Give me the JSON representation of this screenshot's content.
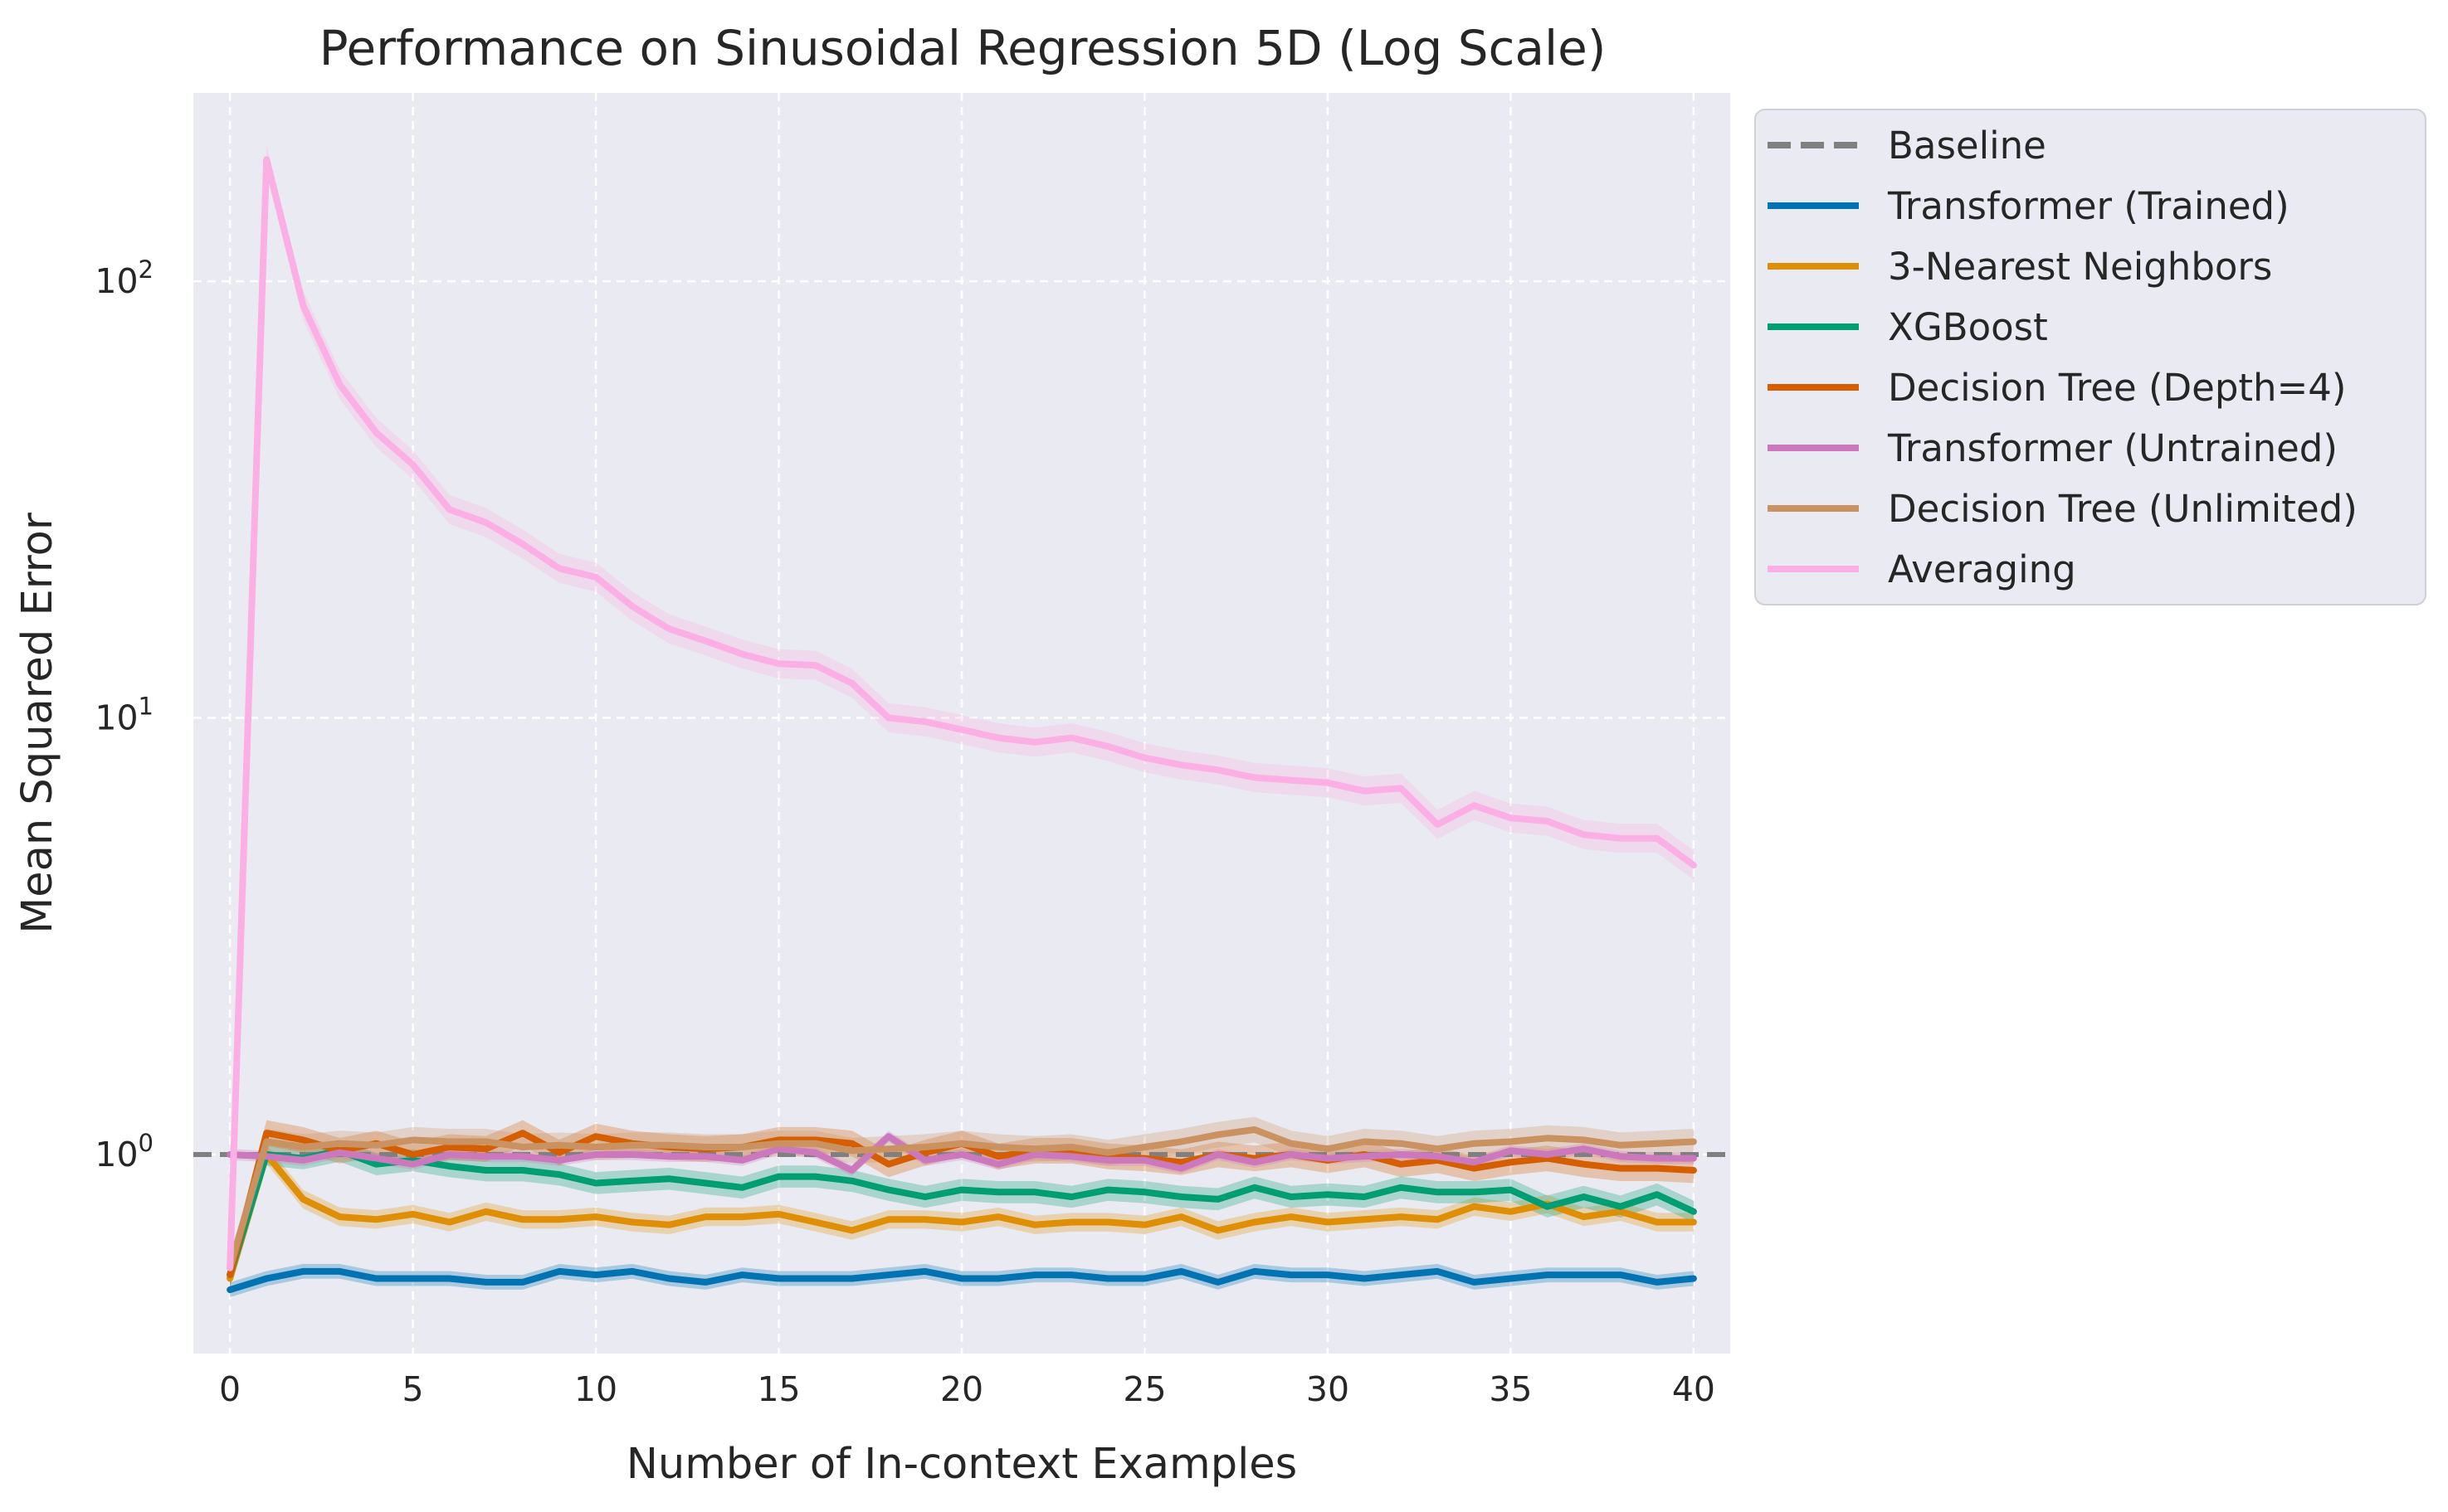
{
  "chart_data": {
    "type": "line",
    "title": "Performance on Sinusoidal Regression 5D (Log Scale)",
    "xlabel": "Number of In-context Examples",
    "ylabel": "Mean Squared Error",
    "xlim": [
      -1,
      41
    ],
    "ylim": [
      0.35,
      270
    ],
    "yscale": "log",
    "grid": true,
    "legend_position": "outside-right",
    "x_ticks": [
      0,
      5,
      10,
      15,
      20,
      25,
      30,
      35,
      40
    ],
    "x_tick_labels": [
      "0",
      "5",
      "10",
      "15",
      "20",
      "25",
      "30",
      "35",
      "40"
    ],
    "y_ticks": [
      1,
      10,
      100
    ],
    "y_tick_labels": [
      {
        "base": "10",
        "exp": "0"
      },
      {
        "base": "10",
        "exp": "1"
      },
      {
        "base": "10",
        "exp": "2"
      }
    ],
    "baseline": {
      "name": "Baseline",
      "value": 1.0,
      "color": "#808080",
      "style": "dashed"
    },
    "x": [
      0,
      1,
      2,
      3,
      4,
      5,
      6,
      7,
      8,
      9,
      10,
      11,
      12,
      13,
      14,
      15,
      16,
      17,
      18,
      19,
      20,
      21,
      22,
      23,
      24,
      25,
      26,
      27,
      28,
      29,
      30,
      31,
      32,
      33,
      34,
      35,
      36,
      37,
      38,
      39,
      40
    ],
    "series": [
      {
        "name": "Transformer (Trained)",
        "color": "#0173b2",
        "values": [
          0.49,
          0.52,
          0.54,
          0.54,
          0.52,
          0.52,
          0.52,
          0.51,
          0.51,
          0.54,
          0.53,
          0.54,
          0.52,
          0.51,
          0.53,
          0.52,
          0.52,
          0.52,
          0.53,
          0.54,
          0.52,
          0.52,
          0.53,
          0.53,
          0.52,
          0.52,
          0.54,
          0.51,
          0.54,
          0.53,
          0.53,
          0.52,
          0.53,
          0.54,
          0.51,
          0.52,
          0.53,
          0.53,
          0.53,
          0.51,
          0.52
        ],
        "band": 0.04
      },
      {
        "name": "3-Nearest Neighbors",
        "color": "#de8f05",
        "values": [
          0.52,
          1.0,
          0.79,
          0.72,
          0.71,
          0.73,
          0.7,
          0.74,
          0.71,
          0.71,
          0.72,
          0.7,
          0.69,
          0.72,
          0.72,
          0.73,
          0.7,
          0.67,
          0.71,
          0.71,
          0.7,
          0.72,
          0.69,
          0.7,
          0.7,
          0.69,
          0.72,
          0.67,
          0.7,
          0.72,
          0.7,
          0.71,
          0.72,
          0.71,
          0.76,
          0.74,
          0.77,
          0.72,
          0.74,
          0.7,
          0.7
        ],
        "band": 0.05
      },
      {
        "name": "XGBoost",
        "color": "#029e73",
        "values": [
          0.53,
          1.0,
          0.98,
          1.02,
          0.95,
          0.97,
          0.94,
          0.92,
          0.92,
          0.9,
          0.86,
          0.87,
          0.88,
          0.86,
          0.84,
          0.89,
          0.89,
          0.87,
          0.83,
          0.8,
          0.83,
          0.82,
          0.82,
          0.8,
          0.83,
          0.82,
          0.8,
          0.79,
          0.84,
          0.8,
          0.81,
          0.8,
          0.84,
          0.82,
          0.82,
          0.83,
          0.76,
          0.8,
          0.76,
          0.81,
          0.74
        ],
        "band": 0.06
      },
      {
        "name": "Decision Tree (Depth=4)",
        "color": "#d55e00",
        "values": [
          0.53,
          1.12,
          1.08,
          1.02,
          1.06,
          1.0,
          1.04,
          1.03,
          1.12,
          1.01,
          1.1,
          1.06,
          1.04,
          1.03,
          1.04,
          1.08,
          1.08,
          1.06,
          0.95,
          1.01,
          1.06,
          0.99,
          1.02,
          1.02,
          0.99,
          0.98,
          0.96,
          1.0,
          0.98,
          1.0,
          0.97,
          1.0,
          0.95,
          0.97,
          0.93,
          0.96,
          0.98,
          0.95,
          0.93,
          0.93,
          0.92
        ],
        "band": 0.07
      },
      {
        "name": "Transformer (Untrained)",
        "color": "#cc78bc",
        "values": [
          1.0,
          0.99,
          0.97,
          1.01,
          0.98,
          0.95,
          1.0,
          0.99,
          0.99,
          0.97,
          1.0,
          1.0,
          0.99,
          0.99,
          0.97,
          1.03,
          1.01,
          0.92,
          1.1,
          0.97,
          1.0,
          0.95,
          1.0,
          0.99,
          0.97,
          0.97,
          0.93,
          1.0,
          0.96,
          1.0,
          0.98,
          0.99,
          1.0,
          0.99,
          0.96,
          1.02,
          1.0,
          1.03,
          0.99,
          0.98,
          0.98
        ],
        "band": 0.03
      },
      {
        "name": "Decision Tree (Unlimited)",
        "color": "#ca9161",
        "values": [
          0.55,
          1.07,
          1.04,
          1.06,
          1.05,
          1.08,
          1.07,
          1.07,
          1.04,
          1.05,
          1.04,
          1.05,
          1.05,
          1.04,
          1.04,
          1.06,
          1.06,
          1.02,
          1.03,
          1.04,
          1.06,
          1.04,
          1.03,
          1.04,
          1.01,
          1.04,
          1.07,
          1.11,
          1.14,
          1.06,
          1.03,
          1.07,
          1.06,
          1.03,
          1.06,
          1.07,
          1.09,
          1.08,
          1.05,
          1.06,
          1.07
        ],
        "band": 0.07
      },
      {
        "name": "Averaging",
        "color": "#fbafe4",
        "values": [
          0.55,
          190,
          88,
          58,
          45,
          38,
          30,
          28,
          25,
          22,
          21,
          18,
          16,
          15,
          14,
          13.3,
          13.2,
          12,
          10,
          9.8,
          9.4,
          9,
          8.8,
          9,
          8.6,
          8.1,
          7.8,
          7.6,
          7.3,
          7.2,
          7.1,
          6.8,
          6.9,
          5.7,
          6.3,
          5.9,
          5.8,
          5.4,
          5.3,
          5.3,
          4.6
        ],
        "band": 0.08
      }
    ]
  }
}
